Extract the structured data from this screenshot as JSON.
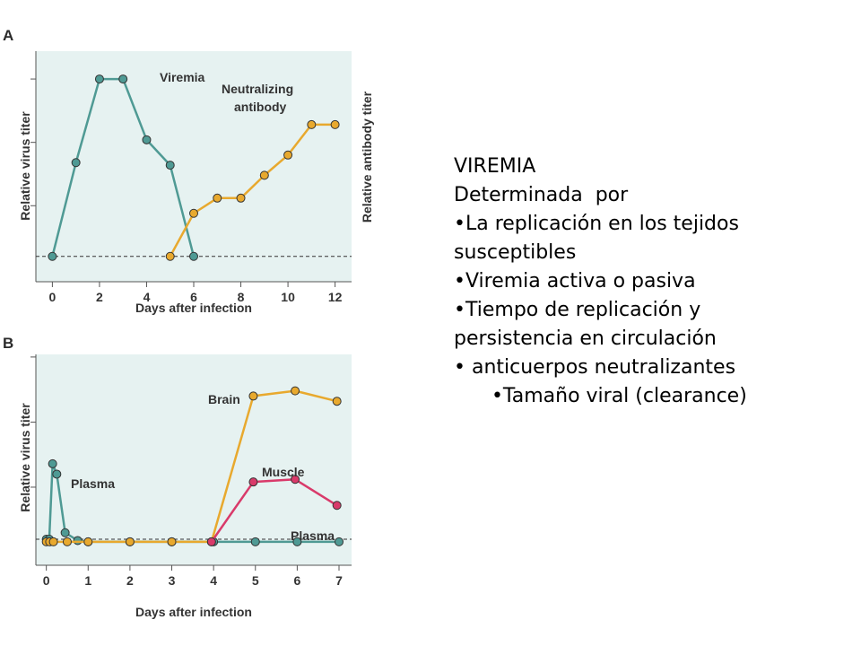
{
  "chart_data": [
    {
      "panel": "A",
      "type": "line",
      "xlabel": "Days after infection",
      "ylabel_left": "Relative virus titer",
      "ylabel_right": "Relative antibody titer",
      "xlim": [
        -0.7,
        12.7
      ],
      "ylim": [
        -0.5,
        8.6
      ],
      "x_ticks": [
        0,
        2,
        4,
        6,
        8,
        10,
        12
      ],
      "y_ticks": [
        2.5,
        5.0,
        7.5
      ],
      "baseline": 0.5,
      "series": [
        {
          "name": "Viremia",
          "color": "#4f9a94",
          "points": [
            [
              0,
              0.5
            ],
            [
              1,
              4.2
            ],
            [
              2,
              7.5
            ],
            [
              3,
              7.5
            ],
            [
              4,
              5.1
            ],
            [
              5,
              4.1
            ],
            [
              6,
              0.5
            ]
          ]
        },
        {
          "name": "Neutralizing antibody",
          "color": "#e8a92e",
          "points": [
            [
              5,
              0.5
            ],
            [
              6,
              2.2
            ],
            [
              7,
              2.8
            ],
            [
              8,
              2.8
            ],
            [
              9,
              3.7
            ],
            [
              10,
              4.5
            ],
            [
              11,
              5.7
            ],
            [
              12,
              5.7
            ]
          ]
        }
      ]
    },
    {
      "panel": "B",
      "type": "line",
      "xlabel": "Days after infection",
      "ylabel_left": "Relative virus titer",
      "xlim": [
        -0.25,
        7.3
      ],
      "ylim": [
        -0.5,
        7.6
      ],
      "x_ticks": [
        0,
        1,
        2,
        3,
        4,
        5,
        6,
        7
      ],
      "y_ticks": [
        2.5,
        5.0,
        7.5
      ],
      "baseline": 0.5,
      "series": [
        {
          "name": "Plasma",
          "color": "#4f9a94",
          "points": [
            [
              0,
              0.5
            ],
            [
              0.07,
              0.5
            ],
            [
              0.15,
              3.4
            ],
            [
              0.25,
              3.0
            ],
            [
              0.45,
              0.75
            ],
            [
              0.75,
              0.45
            ],
            [
              1,
              0.4
            ],
            [
              2,
              0.4
            ],
            [
              3,
              0.4
            ],
            [
              4,
              0.4
            ],
            [
              5,
              0.4
            ],
            [
              6,
              0.4
            ],
            [
              7,
              0.4
            ]
          ]
        },
        {
          "name": "Brain",
          "color": "#e8a92e",
          "points": [
            [
              0,
              0.4
            ],
            [
              0.08,
              0.4
            ],
            [
              0.17,
              0.4
            ],
            [
              0.5,
              0.4
            ],
            [
              1,
              0.4
            ],
            [
              2,
              0.4
            ],
            [
              3,
              0.4
            ],
            [
              3.95,
              0.4
            ],
            [
              4.95,
              6.0
            ],
            [
              5.95,
              6.2
            ],
            [
              6.95,
              5.8
            ]
          ]
        },
        {
          "name": "Muscle",
          "color": "#d93a6a",
          "points": [
            [
              3.95,
              0.4
            ],
            [
              4.95,
              2.7
            ],
            [
              5.95,
              2.8
            ],
            [
              6.95,
              1.8
            ]
          ]
        }
      ]
    }
  ],
  "panels": {
    "a": {
      "letter": "A",
      "xlabel": "Days after infection",
      "ylabel_left": "Relative virus titer",
      "ylabel_right": "Relative antibody titer",
      "tick_labels": [
        "0",
        "2",
        "4",
        "6",
        "8",
        "10",
        "12"
      ],
      "ann_viremia": "Viremia",
      "ann_antibody_1": "Neutralizing",
      "ann_antibody_2": "antibody"
    },
    "b": {
      "letter": "B",
      "xlabel": "Days after infection",
      "ylabel_left": "Relative virus titer",
      "tick_labels": [
        "0",
        "1",
        "2",
        "3",
        "4",
        "5",
        "6",
        "7"
      ],
      "ann_brain": "Brain",
      "ann_muscle": "Muscle",
      "ann_plasma_top": "Plasma",
      "ann_plasma_bottom": "Plasma"
    }
  },
  "text_block": {
    "lines": [
      "VIREMIA",
      "Determinada  por",
      "•La replicación en los tejidos",
      "susceptibles",
      "•Viremia activa o pasiva",
      "•Tiempo de replicación y",
      "persistencia en circulación",
      "• anticuerpos neutralizantes",
      "      •Tamaño viral (clearance)"
    ]
  },
  "colors": {
    "plot_bg": "#e6f2f1",
    "teal": "#4f9a94",
    "orange": "#e8a92e",
    "pink": "#d93a6a",
    "axis": "#555555"
  }
}
